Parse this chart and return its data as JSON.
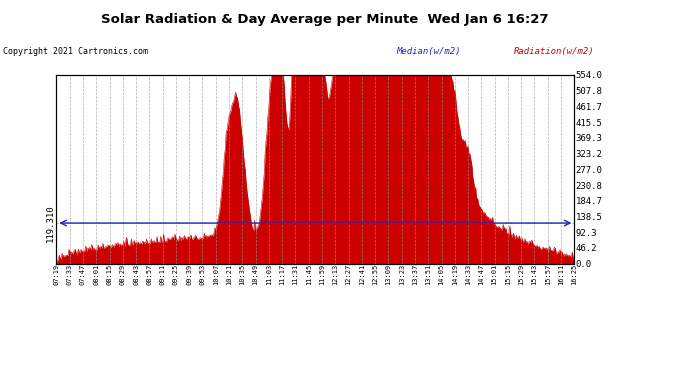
{
  "title": "Solar Radiation & Day Average per Minute  Wed Jan 6 16:27",
  "copyright": "Copyright 2021 Cartronics.com",
  "legend_median": "Median(w/m2)",
  "legend_radiation": "Radiation(w/m2)",
  "median_value": 119.31,
  "ymax": 554.0,
  "ymin": 0.0,
  "yticks_right": [
    0.0,
    46.2,
    92.3,
    138.5,
    184.7,
    230.8,
    277.0,
    323.2,
    369.3,
    415.5,
    461.7,
    507.8,
    554.0
  ],
  "background_color": "#ffffff",
  "fill_color": "#cc0000",
  "median_color": "#2222bb",
  "grid_color": "#999999",
  "title_color": "#000000",
  "copyright_color": "#000000",
  "xtick_labels": [
    "07:19",
    "07:33",
    "07:47",
    "08:01",
    "08:15",
    "08:29",
    "08:43",
    "08:57",
    "09:11",
    "09:25",
    "09:39",
    "09:53",
    "10:07",
    "10:21",
    "10:35",
    "10:49",
    "11:03",
    "11:17",
    "11:31",
    "11:45",
    "11:59",
    "12:13",
    "12:27",
    "12:41",
    "12:55",
    "13:09",
    "13:23",
    "13:37",
    "13:51",
    "14:05",
    "14:19",
    "14:33",
    "14:47",
    "15:01",
    "15:15",
    "15:29",
    "15:43",
    "15:57",
    "16:11",
    "16:25"
  ]
}
